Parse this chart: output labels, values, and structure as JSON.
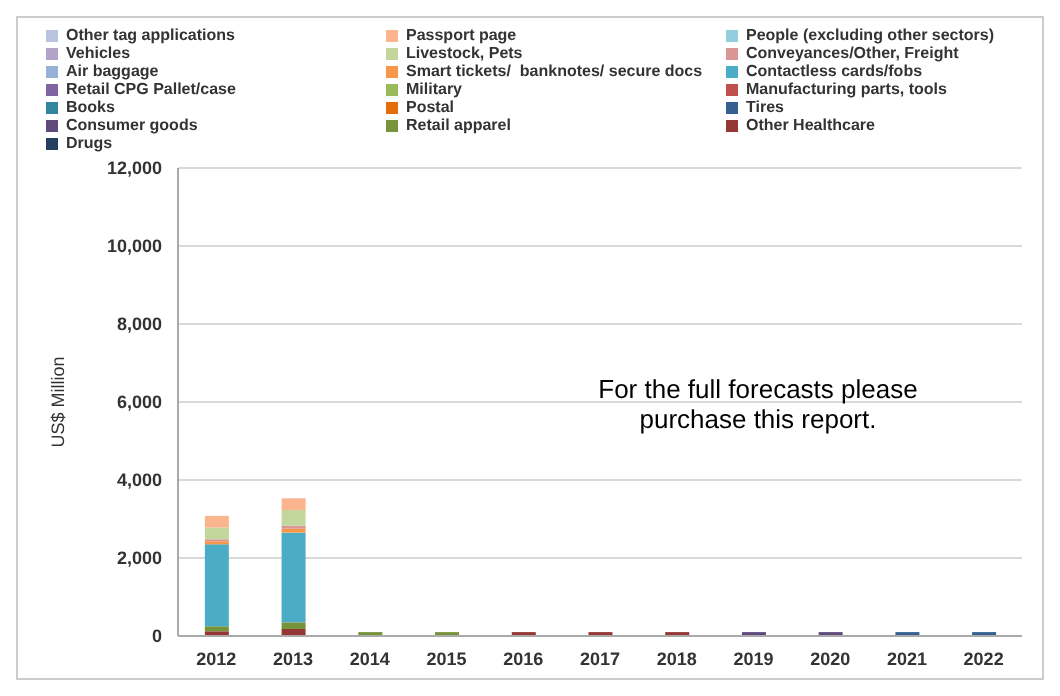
{
  "chart_data": {
    "type": "bar",
    "stacked": true,
    "ylabel": "US$ Million",
    "categories": [
      "2012",
      "2013",
      "2014",
      "2015",
      "2016",
      "2017",
      "2018",
      "2019",
      "2020",
      "2021",
      "2022"
    ],
    "series": [
      {
        "name": "Drugs",
        "color": "#254061",
        "values": [
          null,
          null,
          null,
          null,
          null,
          null,
          null,
          null,
          null,
          null,
          null
        ]
      },
      {
        "name": "Other Healthcare",
        "color": "#953735",
        "values": [
          120,
          180,
          null,
          null,
          100,
          100,
          100,
          null,
          null,
          null,
          null
        ]
      },
      {
        "name": "Retail apparel",
        "color": "#77933c",
        "values": [
          130,
          170,
          100,
          100,
          null,
          null,
          null,
          null,
          null,
          null,
          null
        ]
      },
      {
        "name": "Consumer goods",
        "color": "#604a7b",
        "values": [
          null,
          null,
          null,
          null,
          null,
          null,
          null,
          100,
          100,
          null,
          null
        ]
      },
      {
        "name": "Tires",
        "color": "#376092",
        "values": [
          null,
          null,
          null,
          null,
          null,
          null,
          null,
          null,
          null,
          100,
          100
        ]
      },
      {
        "name": "Postal",
        "color": "#e46c0a",
        "values": [
          null,
          null,
          null,
          null,
          null,
          null,
          null,
          null,
          null,
          null,
          null
        ]
      },
      {
        "name": "Books",
        "color": "#31859c",
        "values": [
          null,
          null,
          null,
          null,
          null,
          null,
          null,
          null,
          null,
          null,
          null
        ]
      },
      {
        "name": "Manufacturing parts, tools",
        "color": "#c0504d",
        "values": [
          null,
          null,
          null,
          null,
          null,
          null,
          null,
          null,
          null,
          null,
          null
        ]
      },
      {
        "name": "Military",
        "color": "#9bbb59",
        "values": [
          null,
          null,
          null,
          null,
          null,
          null,
          null,
          null,
          null,
          null,
          null
        ]
      },
      {
        "name": "Retail CPG Pallet/case",
        "color": "#8064a2",
        "values": [
          null,
          null,
          null,
          null,
          null,
          null,
          null,
          null,
          null,
          null,
          null
        ]
      },
      {
        "name": "Contactless cards/fobs",
        "color": "#4bacc6",
        "values": [
          2100,
          2300,
          null,
          null,
          null,
          null,
          null,
          null,
          null,
          null,
          null
        ]
      },
      {
        "name": "Smart tickets/  banknotes/ secure docs",
        "color": "#f79646",
        "values": [
          80,
          100,
          null,
          null,
          null,
          null,
          null,
          null,
          null,
          null,
          null
        ]
      },
      {
        "name": "Air baggage",
        "color": "#95b3d7",
        "values": [
          null,
          null,
          null,
          null,
          null,
          null,
          null,
          null,
          null,
          null,
          null
        ]
      },
      {
        "name": "Conveyances/Other, Freight",
        "color": "#d99694",
        "values": [
          50,
          80,
          null,
          null,
          null,
          null,
          null,
          null,
          null,
          null,
          null
        ]
      },
      {
        "name": "Livestock, Pets",
        "color": "#c3d69b",
        "values": [
          300,
          400,
          null,
          null,
          null,
          null,
          null,
          null,
          null,
          null,
          null
        ]
      },
      {
        "name": "Vehicles",
        "color": "#b3a2c7",
        "values": [
          null,
          null,
          null,
          null,
          null,
          null,
          null,
          null,
          null,
          null,
          null
        ]
      },
      {
        "name": "People (excluding other sectors)",
        "color": "#93cddd",
        "values": [
          null,
          null,
          null,
          null,
          null,
          null,
          null,
          null,
          null,
          null,
          null
        ]
      },
      {
        "name": "Passport page",
        "color": "#fab58f",
        "values": [
          300,
          300,
          null,
          null,
          null,
          null,
          null,
          null,
          null,
          null,
          null
        ]
      },
      {
        "name": "Other tag applications",
        "color": "#b9c3e0",
        "values": [
          null,
          null,
          null,
          null,
          null,
          null,
          null,
          null,
          null,
          null,
          null
        ]
      }
    ],
    "ylim": [
      0,
      12000
    ],
    "yticks": [
      {
        "value": 0,
        "label": "0"
      },
      {
        "value": 2000,
        "label": "2,000"
      },
      {
        "value": 4000,
        "label": "4,000"
      },
      {
        "value": 6000,
        "label": "6,000"
      },
      {
        "value": 8000,
        "label": "8,000"
      },
      {
        "value": 10000,
        "label": "10,000"
      },
      {
        "value": 12000,
        "label": "12,000"
      }
    ],
    "grid": "y",
    "legend": "top",
    "annotations": [
      "For the full forecasts please purchase this report."
    ]
  }
}
